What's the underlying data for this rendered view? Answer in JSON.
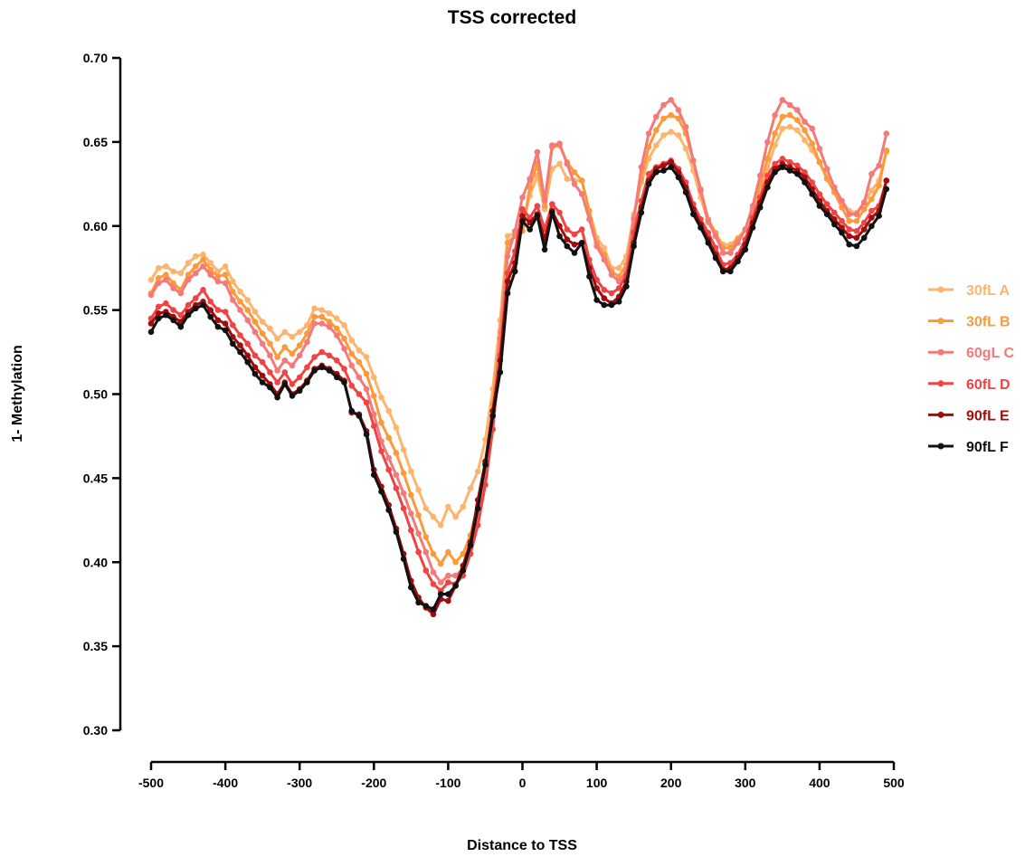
{
  "chart_data": {
    "type": "line",
    "title": "TSS corrected",
    "xlabel": "Distance to TSS",
    "ylabel": "1- Methylation",
    "xlim": [
      -500,
      500
    ],
    "ylim": [
      0.3,
      0.7
    ],
    "xticks": [
      -500,
      -400,
      -300,
      -200,
      -100,
      0,
      100,
      200,
      300,
      400,
      500
    ],
    "yticks": [
      0.3,
      0.35,
      0.4,
      0.45,
      0.5,
      0.55,
      0.6,
      0.65,
      0.7
    ],
    "x_tick_labels": [
      "-500",
      "-400",
      "-300",
      "-200",
      "-100",
      "0",
      "100",
      "200",
      "300",
      "400",
      "500"
    ],
    "y_tick_labels": [
      "0.30",
      "0.35",
      "0.40",
      "0.45",
      "0.50",
      "0.55",
      "0.60",
      "0.65",
      "0.70"
    ],
    "grid": false,
    "legend_position": "right",
    "x": [
      -500,
      -490,
      -480,
      -470,
      -460,
      -450,
      -440,
      -430,
      -420,
      -410,
      -400,
      -390,
      -380,
      -370,
      -360,
      -350,
      -340,
      -330,
      -320,
      -310,
      -300,
      -290,
      -280,
      -270,
      -260,
      -250,
      -240,
      -230,
      -220,
      -210,
      -200,
      -190,
      -180,
      -170,
      -160,
      -150,
      -140,
      -130,
      -120,
      -110,
      -100,
      -90,
      -80,
      -70,
      -60,
      -50,
      -40,
      -30,
      -20,
      -10,
      0,
      10,
      20,
      30,
      40,
      50,
      60,
      70,
      80,
      90,
      100,
      110,
      120,
      130,
      140,
      150,
      160,
      170,
      180,
      190,
      200,
      210,
      220,
      230,
      240,
      250,
      260,
      270,
      280,
      290,
      300,
      310,
      320,
      330,
      340,
      350,
      360,
      370,
      380,
      390,
      400,
      410,
      420,
      430,
      440,
      450,
      460,
      470,
      480,
      490
    ],
    "series": [
      {
        "name": "30fL A",
        "color": "#FDB46E",
        "values": [
          0.568,
          0.575,
          0.576,
          0.573,
          0.572,
          0.578,
          0.582,
          0.583,
          0.578,
          0.573,
          0.576,
          0.567,
          0.561,
          0.556,
          0.549,
          0.543,
          0.539,
          0.533,
          0.537,
          0.534,
          0.537,
          0.541,
          0.551,
          0.55,
          0.548,
          0.545,
          0.541,
          0.532,
          0.526,
          0.522,
          0.51,
          0.498,
          0.49,
          0.48,
          0.467,
          0.454,
          0.443,
          0.432,
          0.427,
          0.422,
          0.433,
          0.427,
          0.433,
          0.444,
          0.454,
          0.473,
          0.503,
          0.544,
          0.594,
          0.596,
          0.6,
          0.618,
          0.63,
          0.61,
          0.634,
          0.637,
          0.628,
          0.627,
          0.627,
          0.609,
          0.593,
          0.587,
          0.575,
          0.575,
          0.582,
          0.607,
          0.626,
          0.64,
          0.648,
          0.654,
          0.656,
          0.654,
          0.646,
          0.633,
          0.617,
          0.602,
          0.595,
          0.589,
          0.589,
          0.593,
          0.598,
          0.609,
          0.621,
          0.634,
          0.648,
          0.658,
          0.659,
          0.657,
          0.651,
          0.645,
          0.638,
          0.629,
          0.622,
          0.615,
          0.609,
          0.608,
          0.614,
          0.621,
          0.627,
          0.644
        ]
      },
      {
        "name": "30fL B",
        "color": "#FB9A3A",
        "values": [
          0.56,
          0.569,
          0.571,
          0.566,
          0.562,
          0.571,
          0.576,
          0.58,
          0.574,
          0.57,
          0.571,
          0.561,
          0.555,
          0.55,
          0.543,
          0.536,
          0.53,
          0.522,
          0.528,
          0.524,
          0.529,
          0.536,
          0.546,
          0.546,
          0.543,
          0.539,
          0.533,
          0.524,
          0.519,
          0.512,
          0.499,
          0.483,
          0.474,
          0.465,
          0.453,
          0.44,
          0.428,
          0.415,
          0.405,
          0.399,
          0.406,
          0.4,
          0.405,
          0.416,
          0.434,
          0.459,
          0.494,
          0.537,
          0.59,
          0.594,
          0.597,
          0.623,
          0.637,
          0.612,
          0.647,
          0.648,
          0.638,
          0.632,
          0.627,
          0.609,
          0.59,
          0.583,
          0.573,
          0.57,
          0.577,
          0.605,
          0.628,
          0.647,
          0.657,
          0.664,
          0.666,
          0.664,
          0.655,
          0.639,
          0.622,
          0.604,
          0.596,
          0.587,
          0.587,
          0.592,
          0.598,
          0.61,
          0.624,
          0.64,
          0.655,
          0.665,
          0.666,
          0.663,
          0.657,
          0.649,
          0.638,
          0.628,
          0.62,
          0.611,
          0.603,
          0.603,
          0.61,
          0.616,
          0.624,
          0.645
        ]
      },
      {
        "name": "60gL C",
        "color": "#F47A7A",
        "values": [
          0.559,
          0.566,
          0.568,
          0.563,
          0.56,
          0.568,
          0.572,
          0.576,
          0.571,
          0.567,
          0.566,
          0.556,
          0.55,
          0.544,
          0.537,
          0.53,
          0.523,
          0.514,
          0.52,
          0.517,
          0.523,
          0.531,
          0.542,
          0.542,
          0.54,
          0.535,
          0.527,
          0.517,
          0.51,
          0.503,
          0.488,
          0.472,
          0.462,
          0.452,
          0.441,
          0.429,
          0.417,
          0.406,
          0.394,
          0.388,
          0.392,
          0.392,
          0.396,
          0.41,
          0.428,
          0.452,
          0.488,
          0.533,
          0.582,
          0.597,
          0.617,
          0.628,
          0.644,
          0.615,
          0.648,
          0.649,
          0.637,
          0.625,
          0.619,
          0.604,
          0.588,
          0.58,
          0.571,
          0.567,
          0.573,
          0.604,
          0.635,
          0.655,
          0.665,
          0.672,
          0.675,
          0.669,
          0.659,
          0.639,
          0.621,
          0.603,
          0.594,
          0.584,
          0.584,
          0.59,
          0.598,
          0.612,
          0.63,
          0.65,
          0.666,
          0.675,
          0.672,
          0.669,
          0.662,
          0.658,
          0.646,
          0.634,
          0.623,
          0.615,
          0.607,
          0.607,
          0.614,
          0.631,
          0.636,
          0.655
        ]
      },
      {
        "name": "60fL D",
        "color": "#EF4444",
        "values": [
          0.545,
          0.552,
          0.554,
          0.55,
          0.547,
          0.553,
          0.557,
          0.562,
          0.555,
          0.55,
          0.549,
          0.541,
          0.535,
          0.53,
          0.523,
          0.519,
          0.513,
          0.507,
          0.513,
          0.506,
          0.51,
          0.516,
          0.522,
          0.525,
          0.523,
          0.52,
          0.515,
          0.505,
          0.5,
          0.495,
          0.481,
          0.466,
          0.455,
          0.444,
          0.432,
          0.419,
          0.406,
          0.395,
          0.387,
          0.383,
          0.388,
          0.387,
          0.392,
          0.405,
          0.422,
          0.446,
          0.479,
          0.523,
          0.572,
          0.585,
          0.61,
          0.605,
          0.612,
          0.598,
          0.613,
          0.608,
          0.598,
          0.595,
          0.598,
          0.58,
          0.568,
          0.562,
          0.56,
          0.563,
          0.571,
          0.596,
          0.615,
          0.631,
          0.635,
          0.637,
          0.639,
          0.634,
          0.626,
          0.613,
          0.604,
          0.596,
          0.587,
          0.577,
          0.578,
          0.583,
          0.592,
          0.605,
          0.617,
          0.63,
          0.637,
          0.64,
          0.638,
          0.636,
          0.632,
          0.626,
          0.619,
          0.613,
          0.608,
          0.603,
          0.598,
          0.597,
          0.602,
          0.609,
          0.612,
          0.627
        ]
      },
      {
        "name": "90fL E",
        "color": "#A00D0D",
        "values": [
          0.542,
          0.548,
          0.549,
          0.546,
          0.543,
          0.549,
          0.553,
          0.555,
          0.55,
          0.544,
          0.542,
          0.534,
          0.529,
          0.523,
          0.516,
          0.511,
          0.506,
          0.5,
          0.507,
          0.5,
          0.503,
          0.508,
          0.515,
          0.517,
          0.515,
          0.512,
          0.508,
          0.489,
          0.488,
          0.478,
          0.455,
          0.445,
          0.434,
          0.42,
          0.405,
          0.389,
          0.379,
          0.373,
          0.369,
          0.378,
          0.377,
          0.386,
          0.398,
          0.412,
          0.437,
          0.46,
          0.49,
          0.52,
          0.567,
          0.578,
          0.606,
          0.602,
          0.607,
          0.592,
          0.609,
          0.6,
          0.592,
          0.589,
          0.59,
          0.575,
          0.563,
          0.557,
          0.554,
          0.558,
          0.567,
          0.59,
          0.611,
          0.627,
          0.634,
          0.636,
          0.638,
          0.632,
          0.623,
          0.61,
          0.601,
          0.592,
          0.583,
          0.574,
          0.575,
          0.581,
          0.589,
          0.602,
          0.614,
          0.626,
          0.634,
          0.637,
          0.635,
          0.633,
          0.629,
          0.622,
          0.615,
          0.609,
          0.604,
          0.599,
          0.594,
          0.593,
          0.598,
          0.605,
          0.609,
          0.627
        ]
      },
      {
        "name": "90fL F",
        "color": "#111111",
        "values": [
          0.537,
          0.545,
          0.547,
          0.544,
          0.54,
          0.547,
          0.551,
          0.553,
          0.546,
          0.54,
          0.538,
          0.53,
          0.525,
          0.519,
          0.512,
          0.507,
          0.504,
          0.498,
          0.506,
          0.499,
          0.502,
          0.507,
          0.514,
          0.516,
          0.514,
          0.51,
          0.507,
          0.49,
          0.487,
          0.476,
          0.452,
          0.442,
          0.431,
          0.418,
          0.402,
          0.385,
          0.376,
          0.374,
          0.372,
          0.381,
          0.381,
          0.386,
          0.395,
          0.41,
          0.432,
          0.458,
          0.487,
          0.513,
          0.56,
          0.573,
          0.603,
          0.598,
          0.606,
          0.586,
          0.608,
          0.594,
          0.588,
          0.584,
          0.59,
          0.57,
          0.556,
          0.553,
          0.553,
          0.555,
          0.564,
          0.588,
          0.608,
          0.625,
          0.632,
          0.633,
          0.635,
          0.629,
          0.62,
          0.607,
          0.599,
          0.59,
          0.581,
          0.573,
          0.573,
          0.579,
          0.586,
          0.599,
          0.611,
          0.623,
          0.632,
          0.635,
          0.633,
          0.631,
          0.626,
          0.619,
          0.612,
          0.607,
          0.601,
          0.596,
          0.589,
          0.588,
          0.593,
          0.6,
          0.606,
          0.622
        ]
      }
    ]
  }
}
